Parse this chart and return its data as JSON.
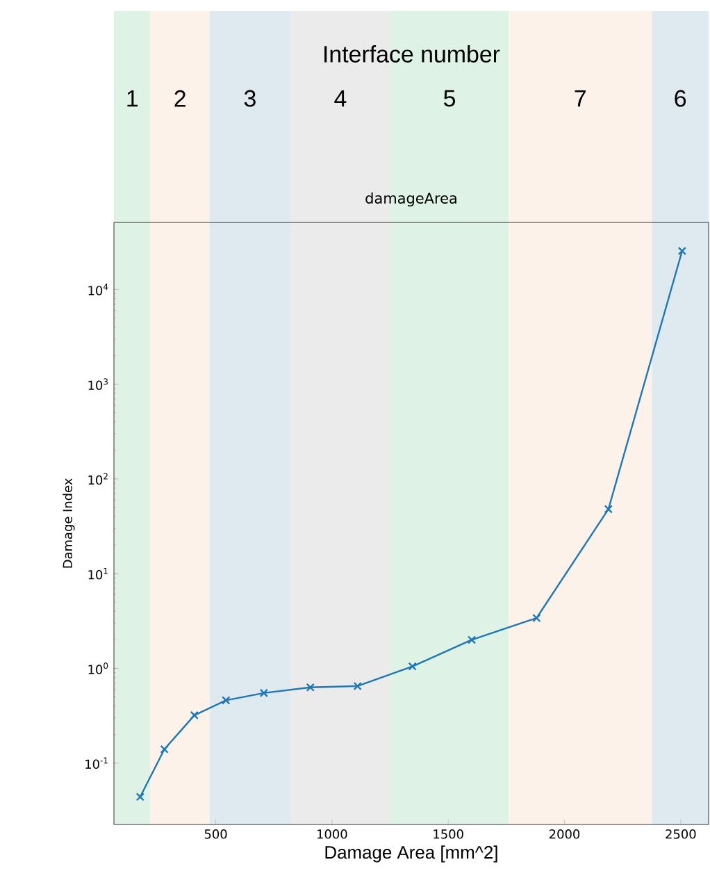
{
  "chart_data": {
    "type": "line",
    "title": "damageArea",
    "xlabel": "Damage Area [mm^2]",
    "ylabel": "Damage Index",
    "annotations": [
      "Interface number"
    ],
    "x": [
      175,
      279,
      408,
      544,
      707,
      907,
      1110,
      1346,
      1601,
      1880,
      2189,
      2506
    ],
    "series": [
      {
        "color": "#1f77b4",
        "values": [
          0.044,
          0.14,
          0.32,
          0.46,
          0.55,
          0.63,
          0.65,
          1.05,
          2.0,
          3.4,
          48,
          25500
        ]
      }
    ],
    "xlim": [
      62,
      2620
    ],
    "ylim": [
      0.0225,
      51000
    ],
    "log": "y",
    "marker": "cross",
    "line_style": "solid",
    "grid": false,
    "xticks": [
      500,
      1000,
      1500,
      2000,
      2500
    ],
    "yticks": [
      {
        "value": 0.1,
        "label": "10$^{-1}$"
      },
      {
        "value": 1,
        "label": "10$^{0}$"
      },
      {
        "value": 10,
        "label": "10$^{1}$"
      },
      {
        "value": 100,
        "label": "10$^{2}$"
      },
      {
        "value": 1000,
        "label": "10$^{3}$"
      },
      {
        "value": 10000,
        "label": "10$^{4}$"
      }
    ],
    "bands": [
      {
        "axis": "x",
        "from": 62,
        "to": 219,
        "label": "1",
        "color": "#dff2e6"
      },
      {
        "axis": "x",
        "from": 219,
        "to": 474,
        "label": "2",
        "color": "#fdf2ea"
      },
      {
        "axis": "x",
        "from": 474,
        "to": 821,
        "label": "3",
        "color": "#dee9f0"
      },
      {
        "axis": "x",
        "from": 821,
        "to": 1251,
        "label": "4",
        "color": "#ebebeb"
      },
      {
        "axis": "x",
        "from": 1251,
        "to": 1760,
        "label": "5",
        "color": "#dff2e6"
      },
      {
        "axis": "x",
        "from": 1760,
        "to": 2376,
        "label": "7",
        "color": "#fdf2ea"
      },
      {
        "axis": "x",
        "from": 2376,
        "to": 2620,
        "label": "6",
        "color": "#dee9f0"
      }
    ]
  }
}
